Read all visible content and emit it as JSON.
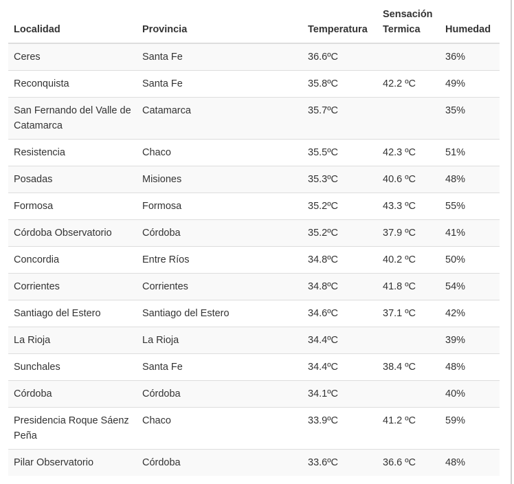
{
  "table": {
    "headers": [
      "Localidad",
      "Provincia",
      "Temperatura",
      "Sensación Termica",
      "Humedad"
    ],
    "rows": [
      [
        "Ceres",
        "Santa Fe",
        "36.6ºC",
        null,
        "36%"
      ],
      [
        "Reconquista",
        "Santa Fe",
        "35.8ºC",
        "42.2 ºC",
        "49%"
      ],
      [
        "San Fernando del Valle de Catamarca",
        "Catamarca",
        "35.7ºC",
        null,
        "35%"
      ],
      [
        "Resistencia",
        "Chaco",
        "35.5ºC",
        "42.3 ºC",
        "51%"
      ],
      [
        "Posadas",
        "Misiones",
        "35.3ºC",
        "40.6 ºC",
        "48%"
      ],
      [
        "Formosa",
        "Formosa",
        "35.2ºC",
        "43.3 ºC",
        "55%"
      ],
      [
        "Córdoba Observatorio",
        "Córdoba",
        "35.2ºC",
        "37.9 ºC",
        "41%"
      ],
      [
        "Concordia",
        "Entre Ríos",
        "34.8ºC",
        "40.2 ºC",
        "50%"
      ],
      [
        "Corrientes",
        "Corrientes",
        "34.8ºC",
        "41.8 ºC",
        "54%"
      ],
      [
        "Santiago del Estero",
        "Santiago del Estero",
        "34.6ºC",
        "37.1 ºC",
        "42%"
      ],
      [
        "La Rioja",
        "La Rioja",
        "34.4ºC",
        null,
        "39%"
      ],
      [
        "Sunchales",
        "Santa Fe",
        "34.4ºC",
        "38.4 ºC",
        "48%"
      ],
      [
        "Córdoba",
        "Córdoba",
        "34.1ºC",
        null,
        "40%"
      ],
      [
        "Presidencia Roque Sáenz Peña",
        "Chaco",
        "33.9ºC",
        "41.2 ºC",
        "59%"
      ],
      [
        "Pilar Observatorio",
        "Córdoba",
        "33.6ºC",
        "36.6 ºC",
        "48%"
      ]
    ]
  }
}
